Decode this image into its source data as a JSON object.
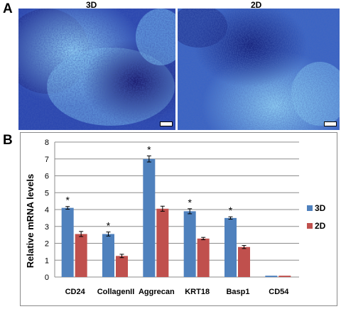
{
  "panels": {
    "a_letter": "A",
    "b_letter": "B",
    "left_image_label": "3D",
    "right_image_label": "2D"
  },
  "colors": {
    "series_3d": "#4f81bd",
    "series_2d": "#c0504d",
    "micro_dark": "#1a1a7a",
    "micro_mid": "#2f4fb8",
    "micro_light": "#7fc3ef"
  },
  "chart_data": {
    "type": "bar",
    "title": "",
    "xlabel": "",
    "ylabel": "Relative mRNA levels",
    "ylim": [
      0,
      8
    ],
    "yticks": [
      "0",
      "1",
      "2",
      "3",
      "4",
      "5",
      "6",
      "7",
      "8"
    ],
    "grid": true,
    "legend_position": "right",
    "categories": [
      "CD24",
      "CollagenII",
      "Aggrecan",
      "KRT18",
      "Basp1",
      "CD54"
    ],
    "series": [
      {
        "name": "3D",
        "values": [
          4.1,
          2.55,
          7.0,
          3.9,
          3.5,
          0.08
        ],
        "errors": [
          0.08,
          0.12,
          0.18,
          0.15,
          0.07,
          0.01
        ],
        "significance": [
          "*",
          "*",
          "*",
          "*",
          "*",
          ""
        ]
      },
      {
        "name": "2D",
        "values": [
          2.55,
          1.25,
          4.05,
          2.28,
          1.78,
          0.08
        ],
        "errors": [
          0.15,
          0.1,
          0.15,
          0.07,
          0.09,
          0.01
        ]
      }
    ]
  }
}
